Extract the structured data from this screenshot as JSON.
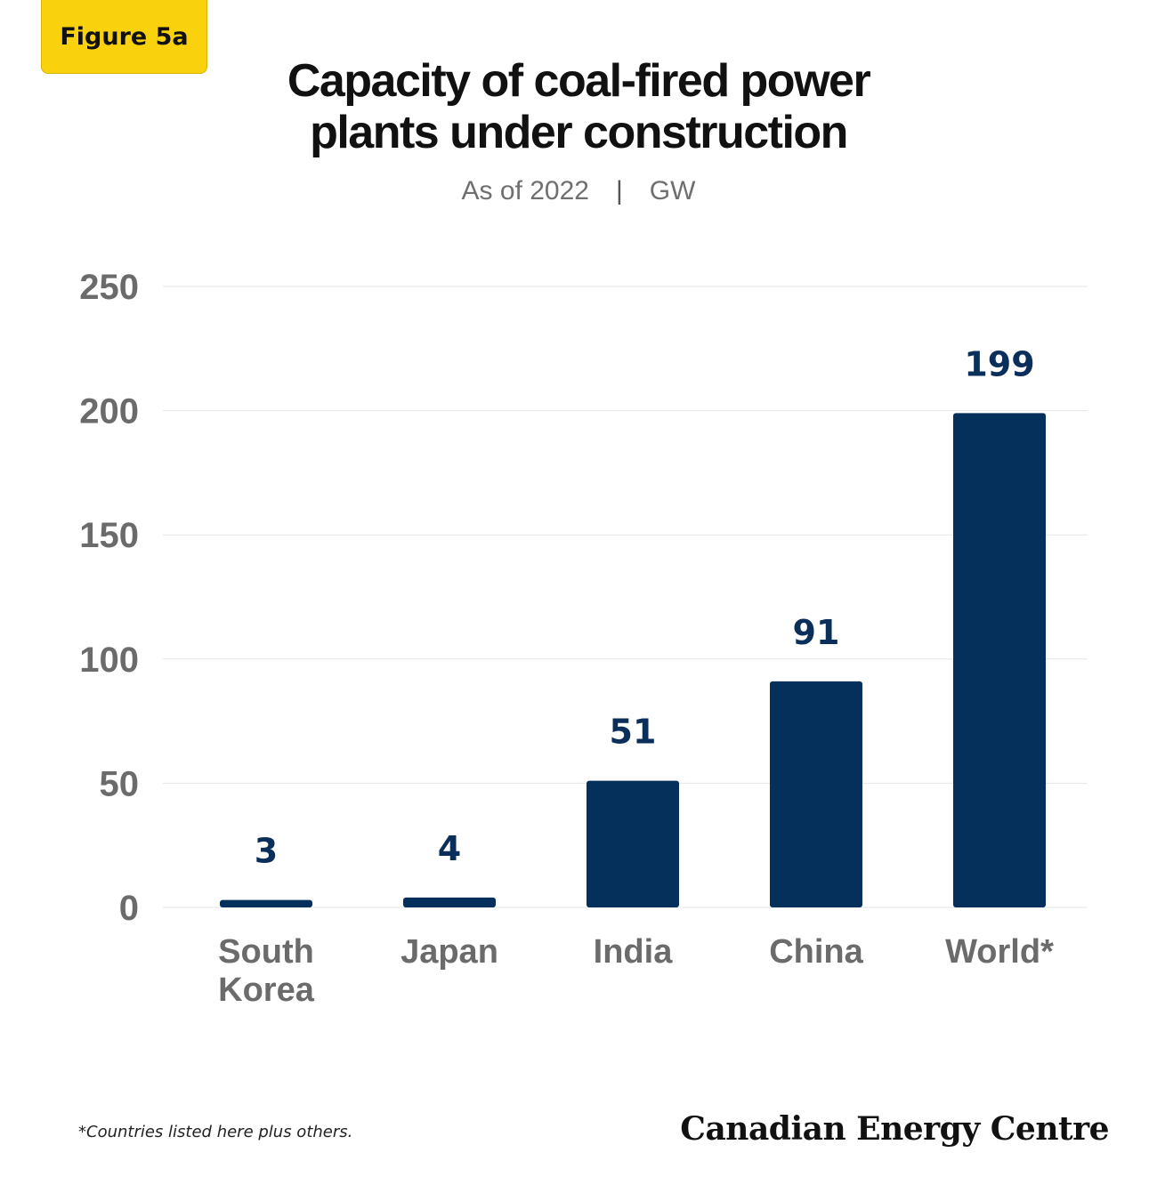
{
  "figure_label": "Figure 5a",
  "title_lines": [
    "Capacity of coal-fired power",
    "plants under construction"
  ],
  "subtitle": {
    "date": "As of 2022",
    "separator": "|",
    "unit": "GW"
  },
  "footnote": "*Countries listed here plus others.",
  "brand": "Canadian Energy Centre",
  "colors": {
    "bar": "#06305c",
    "value_label": "#0b2f5b",
    "tick": "#6b6b6b",
    "grid": "#e6e6e6",
    "badge": "#f9d10d"
  },
  "chart_data": {
    "type": "bar",
    "categories": [
      [
        "South",
        "Korea"
      ],
      [
        "Japan"
      ],
      [
        "India"
      ],
      [
        "China"
      ],
      [
        "World*"
      ]
    ],
    "values": [
      3,
      4,
      51,
      91,
      199
    ],
    "value_labels": [
      "3",
      "4",
      "51",
      "91",
      "199"
    ],
    "ylim": [
      0,
      250
    ],
    "yticks": [
      0,
      50,
      100,
      150,
      200,
      250
    ],
    "grid": true,
    "xlabel": "",
    "ylabel": ""
  }
}
